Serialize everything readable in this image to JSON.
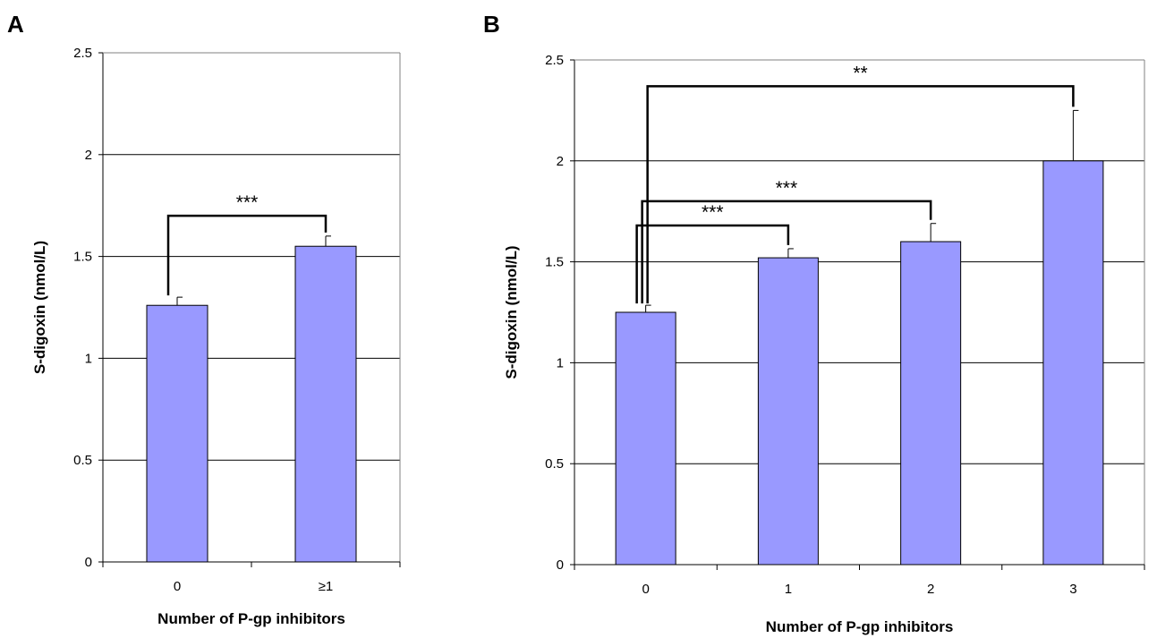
{
  "chart_data": [
    {
      "type": "bar",
      "panel_label": "A",
      "categories": [
        "0",
        "≥1"
      ],
      "values": [
        1.26,
        1.55
      ],
      "errors": [
        0.04,
        0.05
      ],
      "bar_color": "#9999FF",
      "xlabel": "Number of P-gp inhibitors",
      "ylabel": "S-digoxin (nmol/L)",
      "ylim": [
        0,
        2.5
      ],
      "yticks": [
        "0",
        "0.5",
        "1",
        "1.5",
        "2",
        "2.5"
      ],
      "grid": "horizontal",
      "significance": [
        {
          "from": 0,
          "to": 1,
          "level": 1.7,
          "label": "***"
        }
      ]
    },
    {
      "type": "bar",
      "panel_label": "B",
      "categories": [
        "0",
        "1",
        "2",
        "3"
      ],
      "values": [
        1.25,
        1.52,
        1.6,
        2.0
      ],
      "errors": [
        0.035,
        0.045,
        0.09,
        0.25
      ],
      "bar_color": "#9999FF",
      "xlabel": "Number of P-gp inhibitors",
      "ylabel": "S-digoxin (nmol/L)",
      "ylim": [
        0,
        2.5
      ],
      "yticks": [
        "0",
        "0.5",
        "1",
        "1.5",
        "2",
        "2.5"
      ],
      "grid": "horizontal",
      "significance": [
        {
          "from": 0,
          "to": 1,
          "level": 1.68,
          "label": "***"
        },
        {
          "from": 0,
          "to": 2,
          "level": 1.8,
          "label": "***"
        },
        {
          "from": 0,
          "to": 3,
          "level": 2.37,
          "label": "**"
        }
      ]
    }
  ]
}
